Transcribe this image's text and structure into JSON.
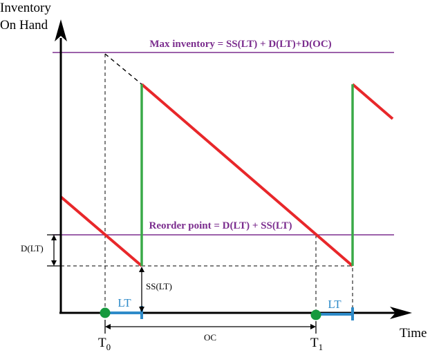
{
  "axes": {
    "y_label_line1": "Inventory",
    "y_label_line2": "On Hand",
    "x_label": "Time"
  },
  "levels": {
    "max_inventory_label": "Max inventory = SS(LT) + D(LT)+D(OC)",
    "reorder_point_label": "Reorder point = D(LT) + SS(LT)"
  },
  "dimensions": {
    "d_lt_label": "D(LT)",
    "ss_lt_label": "SS(LT)",
    "oc_label": "OC",
    "lt_label_first": "LT",
    "lt_label_second": "LT"
  },
  "time_markers": {
    "t0_base": "T",
    "t0_sub": "0",
    "t1_base": "T",
    "t1_sub": "1"
  },
  "colors": {
    "inventory_line": "#e8272a",
    "replenishment": "#3aaa48",
    "level_line": "#7b2d8e",
    "level_text": "#7b2d8e",
    "lead_time": "#2e8bc9",
    "order_dot": "#169a3e",
    "axis": "#000000"
  }
}
